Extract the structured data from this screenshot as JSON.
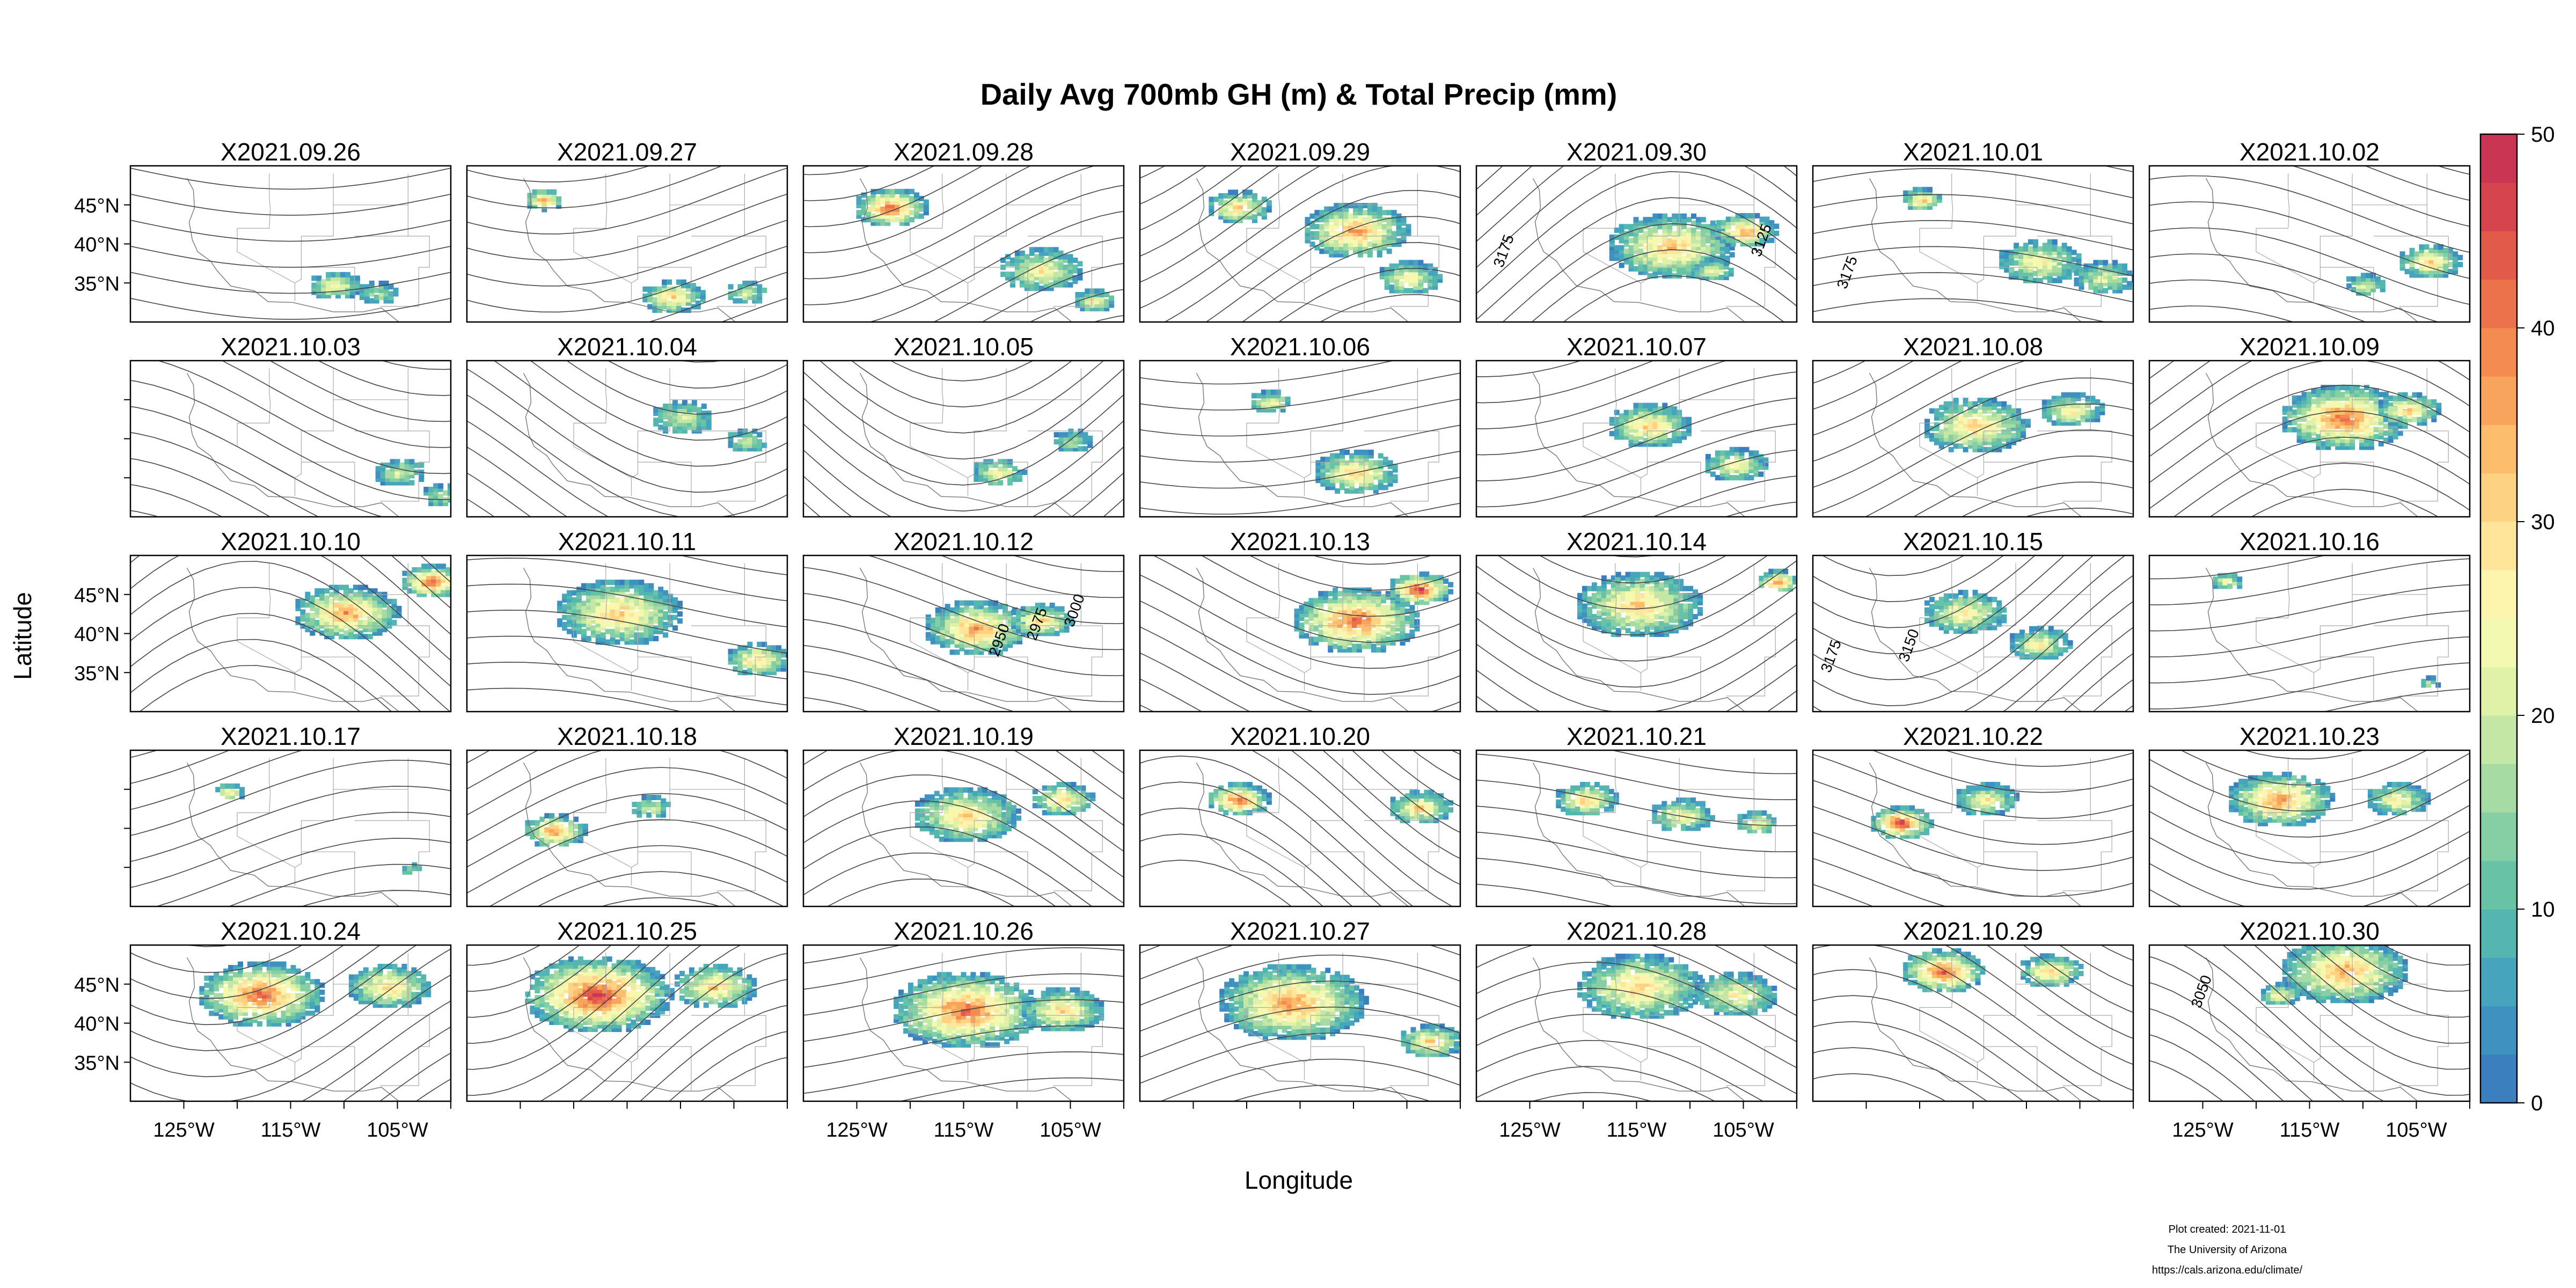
{
  "figure": {
    "title": "Daily Avg 700mb GH (m) & Total Precip (mm)",
    "xlabel": "Longitude",
    "ylabel": "Latitude",
    "lon_ticks": [
      "125°W",
      "115°W",
      "105°W"
    ],
    "lat_ticks": [
      "45°N",
      "40°N",
      "35°N"
    ],
    "colorbar": {
      "ticks": [
        "0",
        "10",
        "20",
        "30",
        "40",
        "50"
      ],
      "min": 0,
      "max": 50,
      "colors": [
        "#3b7fbf",
        "#3f92c0",
        "#46a5bd",
        "#55b5b0",
        "#68c2a5",
        "#86cfa5",
        "#a6dba4",
        "#c5e7a6",
        "#e0f2a8",
        "#f3f9b0",
        "#fdf4ad",
        "#fee59a",
        "#fdd283",
        "#fcbd6d",
        "#f9a45c",
        "#f48b50",
        "#ec724b",
        "#e25b4a",
        "#d6444d",
        "#c93552"
      ]
    },
    "precip_colors": {
      "low": "#3e84c0",
      "mid": "#62b8a8",
      "high": "#e6f1a0",
      "peak": "#f7a255",
      "extreme": "#e2364a"
    },
    "panels": [
      "X2021.09.26",
      "X2021.09.27",
      "X2021.09.28",
      "X2021.09.29",
      "X2021.09.30",
      "X2021.10.01",
      "X2021.10.02",
      "X2021.10.03",
      "X2021.10.04",
      "X2021.10.05",
      "X2021.10.06",
      "X2021.10.07",
      "X2021.10.08",
      "X2021.10.09",
      "X2021.10.10",
      "X2021.10.11",
      "X2021.10.12",
      "X2021.10.13",
      "X2021.10.14",
      "X2021.10.15",
      "X2021.10.16",
      "X2021.10.17",
      "X2021.10.18",
      "X2021.10.19",
      "X2021.10.20",
      "X2021.10.21",
      "X2021.10.22",
      "X2021.10.23",
      "X2021.10.24",
      "X2021.10.25",
      "X2021.10.26",
      "X2021.10.27",
      "X2021.10.28",
      "X2021.10.29",
      "X2021.10.30"
    ],
    "contour_labels": [
      {
        "panel": 4,
        "text": "3175"
      },
      {
        "panel": 4,
        "text": "3125"
      },
      {
        "panel": 5,
        "text": "3175"
      },
      {
        "panel": 16,
        "text": "2950"
      },
      {
        "panel": 16,
        "text": "2975"
      },
      {
        "panel": 16,
        "text": "3000"
      },
      {
        "panel": 19,
        "text": "3175"
      },
      {
        "panel": 19,
        "text": "3150"
      },
      {
        "panel": 34,
        "text": "3050"
      }
    ]
  },
  "credits": {
    "line1": "Plot created: 2021-11-01",
    "line2": "The University of Arizona",
    "line3": "https://cals.arizona.edu/climate/"
  }
}
